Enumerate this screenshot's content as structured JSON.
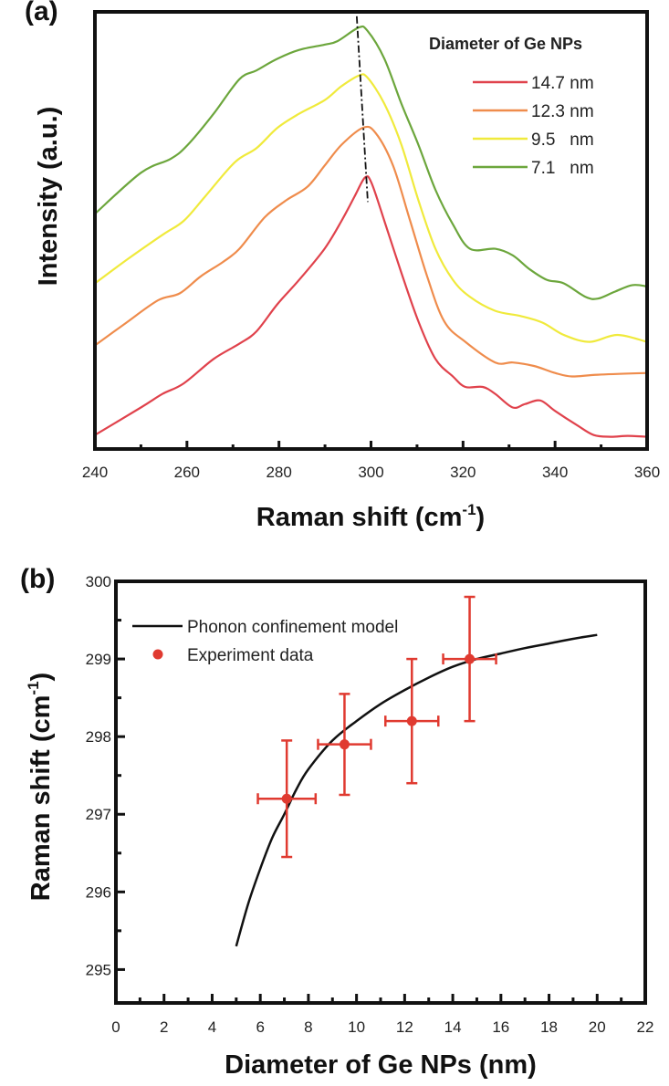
{
  "chart_data": [
    {
      "panel_label": "(a)",
      "type": "line",
      "xlabel": "Raman shift (cm",
      "xlabel_sup": "-1",
      "xlabel_close": ")",
      "ylabel": "Intensity (a.u.)",
      "xlim": [
        240,
        360
      ],
      "ylim": [
        0,
        1
      ],
      "y_ticks_shown": false,
      "x_ticks": [
        240,
        260,
        280,
        300,
        320,
        340,
        360
      ],
      "x_minor_step": 10,
      "grid": false,
      "legend": {
        "title": "Diameter of Ge NPs",
        "placement": "top-right"
      },
      "series": [
        {
          "name": "14.7 nm",
          "color": "#e0424c",
          "x": [
            240,
            250,
            254.7,
            259.3,
            265.8,
            271.4,
            275.1,
            279.7,
            284.4,
            289.9,
            293.6,
            296.4,
            298.7,
            300.1,
            302.9,
            306.6,
            310.3,
            314,
            317.8,
            320.5,
            324.3,
            327,
            330.8,
            333.5,
            336.8,
            340,
            344.7,
            348.4,
            352.1,
            355.8,
            360
          ],
          "y": [
            0.032,
            0.095,
            0.126,
            0.15,
            0.206,
            0.241,
            0.269,
            0.332,
            0.387,
            0.458,
            0.522,
            0.577,
            0.621,
            0.609,
            0.522,
            0.403,
            0.292,
            0.206,
            0.166,
            0.142,
            0.142,
            0.126,
            0.095,
            0.103,
            0.111,
            0.087,
            0.055,
            0.032,
            0.028,
            0.03,
            0.028
          ]
        },
        {
          "name": "12.3 nm",
          "color": "#ef8c4c",
          "x": [
            240,
            246.3,
            253.7,
            258.4,
            263,
            267.7,
            271.4,
            276.9,
            281.6,
            286.2,
            289.9,
            293.6,
            298.3,
            301,
            304.8,
            308.5,
            312.2,
            315.9,
            320.5,
            327,
            330.8,
            335.4,
            340,
            343.7,
            349.3,
            360
          ],
          "y": [
            0.237,
            0.285,
            0.34,
            0.356,
            0.395,
            0.427,
            0.458,
            0.53,
            0.569,
            0.6,
            0.648,
            0.696,
            0.735,
            0.723,
            0.648,
            0.522,
            0.395,
            0.292,
            0.245,
            0.198,
            0.198,
            0.19,
            0.174,
            0.166,
            0.17,
            0.174
          ]
        },
        {
          "name": "9.5   nm",
          "color": "#f0ea3c",
          "x": [
            240,
            247.2,
            254.7,
            259.3,
            263.9,
            270.4,
            275.1,
            279.7,
            284.4,
            289.9,
            293.6,
            297.3,
            299.2,
            302.9,
            306.6,
            310.3,
            314,
            317.8,
            321.5,
            327,
            332.6,
            337.3,
            341.9,
            347.5,
            353.5,
            360
          ],
          "y": [
            0.379,
            0.435,
            0.49,
            0.522,
            0.577,
            0.656,
            0.688,
            0.735,
            0.767,
            0.798,
            0.83,
            0.854,
            0.85,
            0.79,
            0.696,
            0.569,
            0.458,
            0.387,
            0.348,
            0.316,
            0.304,
            0.289,
            0.261,
            0.245,
            0.261,
            0.245
          ]
        },
        {
          "name": "7.1   nm",
          "color": "#6ca63c",
          "x": [
            240,
            250,
            256.5,
            260.2,
            265.8,
            271.4,
            275.1,
            279.7,
            284.4,
            289.9,
            292.7,
            297.3,
            299.2,
            302.9,
            306.6,
            310.3,
            314,
            317.8,
            321.5,
            327,
            330.8,
            334.5,
            338.2,
            341.9,
            346.6,
            349.3,
            353,
            356.8,
            360
          ],
          "y": [
            0.538,
            0.632,
            0.664,
            0.696,
            0.767,
            0.846,
            0.866,
            0.893,
            0.913,
            0.925,
            0.933,
            0.964,
            0.957,
            0.893,
            0.79,
            0.696,
            0.593,
            0.514,
            0.458,
            0.458,
            0.443,
            0.411,
            0.387,
            0.379,
            0.348,
            0.344,
            0.36,
            0.375,
            0.372
          ]
        }
      ],
      "annotations": [
        {
          "type": "dash-dot line",
          "color": "#111111",
          "x": [
            296.9,
            299.3
          ],
          "y": [
            0.99,
            0.565
          ]
        }
      ]
    },
    {
      "panel_label": "(b)",
      "type": "scatter",
      "xlabel": "Diameter of Ge NPs (nm)",
      "ylabel": "Raman shift (cm",
      "ylabel_sup": "-1",
      "ylabel_close": ")",
      "xlim": [
        0,
        22
      ],
      "ylim": [
        294.57,
        300
      ],
      "x_ticks": [
        0,
        2,
        4,
        6,
        8,
        10,
        12,
        14,
        16,
        18,
        20,
        22
      ],
      "y_ticks": [
        295,
        296,
        297,
        298,
        299,
        300
      ],
      "grid": false,
      "legend": {
        "placement": "top-left"
      },
      "series": [
        {
          "name": "Phonon confinement model",
          "type": "line",
          "color": "#111111",
          "x": [
            5,
            5.5,
            6,
            6.5,
            7,
            7.5,
            8,
            9,
            10,
            11,
            12,
            13,
            14,
            15,
            16,
            17,
            18,
            19,
            20
          ],
          "y": [
            295.3,
            295.85,
            296.3,
            296.7,
            297.0,
            297.32,
            297.58,
            297.95,
            298.2,
            298.42,
            298.6,
            298.76,
            298.9,
            299.0,
            299.07,
            299.14,
            299.2,
            299.26,
            299.31
          ]
        },
        {
          "name": "Experiment data",
          "type": "scatter",
          "color": "#e03a30",
          "x": [
            7.1,
            9.5,
            12.3,
            14.7
          ],
          "y": [
            297.2,
            297.9,
            298.2,
            299.0
          ],
          "xerr": [
            1.2,
            1.1,
            1.1,
            1.1
          ],
          "yerr": [
            0.75,
            0.65,
            0.8,
            0.8
          ]
        }
      ]
    }
  ]
}
